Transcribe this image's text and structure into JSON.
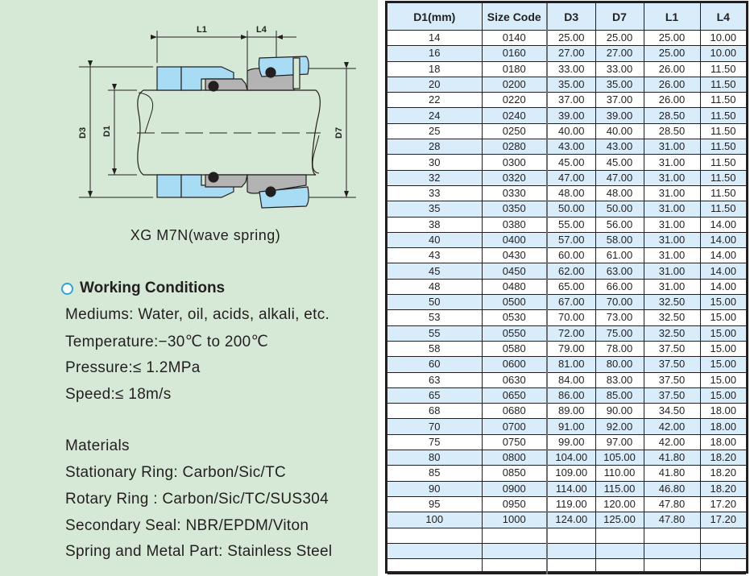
{
  "diagram": {
    "caption": "XG M7N(wave spring)",
    "labels": {
      "l1": "L1",
      "l4": "L4",
      "d3": "D3",
      "d1": "D1",
      "d7": "D7"
    },
    "colors": {
      "background": "#d6e9d6",
      "part_blue": "#a8dcf4",
      "part_gray": "#b3b3b3",
      "oring": "#231f20"
    }
  },
  "working_conditions": {
    "heading": "Working Conditions",
    "lines": [
      "Mediums: Water, oil, acids, alkali, etc.",
      "Temperature:−30℃ to 200℃",
      "Pressure:≤ 1.2MPa",
      "Speed:≤ 18m/s"
    ]
  },
  "materials": {
    "heading": "Materials",
    "lines": [
      "Stationary Ring: Carbon/Sic/TC",
      "Rotary Ring : Carbon/Sic/TC/SUS304",
      "Secondary Seal: NBR/EPDM/Viton",
      "Spring and Metal Part: Stainless Steel"
    ]
  },
  "table": {
    "headers": [
      "D1(mm)",
      "Size Code",
      "D3",
      "D7",
      "L1",
      "L4"
    ],
    "header_bg": "#d8ecf9",
    "rows": [
      [
        "14",
        "0140",
        "25.00",
        "25.00",
        "25.00",
        "10.00"
      ],
      [
        "16",
        "0160",
        "27.00",
        "27.00",
        "25.00",
        "10.00"
      ],
      [
        "18",
        "0180",
        "33.00",
        "33.00",
        "26.00",
        "11.50"
      ],
      [
        "20",
        "0200",
        "35.00",
        "35.00",
        "26.00",
        "11.50"
      ],
      [
        "22",
        "0220",
        "37.00",
        "37.00",
        "26.00",
        "11.50"
      ],
      [
        "24",
        "0240",
        "39.00",
        "39.00",
        "28.50",
        "11.50"
      ],
      [
        "25",
        "0250",
        "40.00",
        "40.00",
        "28.50",
        "11.50"
      ],
      [
        "28",
        "0280",
        "43.00",
        "43.00",
        "31.00",
        "11.50"
      ],
      [
        "30",
        "0300",
        "45.00",
        "45.00",
        "31.00",
        "11.50"
      ],
      [
        "32",
        "0320",
        "47.00",
        "47.00",
        "31.00",
        "11.50"
      ],
      [
        "33",
        "0330",
        "48.00",
        "48.00",
        "31.00",
        "11.50"
      ],
      [
        "35",
        "0350",
        "50.00",
        "50.00",
        "31.00",
        "11.50"
      ],
      [
        "38",
        "0380",
        "55.00",
        "56.00",
        "31.00",
        "14.00"
      ],
      [
        "40",
        "0400",
        "57.00",
        "58.00",
        "31.00",
        "14.00"
      ],
      [
        "43",
        "0430",
        "60.00",
        "61.00",
        "31.00",
        "14.00"
      ],
      [
        "45",
        "0450",
        "62.00",
        "63.00",
        "31.00",
        "14.00"
      ],
      [
        "48",
        "0480",
        "65.00",
        "66.00",
        "31.00",
        "14.00"
      ],
      [
        "50",
        "0500",
        "67.00",
        "70.00",
        "32.50",
        "15.00"
      ],
      [
        "53",
        "0530",
        "70.00",
        "73.00",
        "32.50",
        "15.00"
      ],
      [
        "55",
        "0550",
        "72.00",
        "75.00",
        "32.50",
        "15.00"
      ],
      [
        "58",
        "0580",
        "79.00",
        "78.00",
        "37.50",
        "15.00"
      ],
      [
        "60",
        "0600",
        "81.00",
        "80.00",
        "37.50",
        "15.00"
      ],
      [
        "63",
        "0630",
        "84.00",
        "83.00",
        "37.50",
        "15.00"
      ],
      [
        "65",
        "0650",
        "86.00",
        "85.00",
        "37.50",
        "15.00"
      ],
      [
        "68",
        "0680",
        "89.00",
        "90.00",
        "34.50",
        "18.00"
      ],
      [
        "70",
        "0700",
        "91.00",
        "92.00",
        "42.00",
        "18.00"
      ],
      [
        "75",
        "0750",
        "99.00",
        "97.00",
        "42.00",
        "18.00"
      ],
      [
        "80",
        "0800",
        "104.00",
        "105.00",
        "41.80",
        "18.20"
      ],
      [
        "85",
        "0850",
        "109.00",
        "110.00",
        "41.80",
        "18.20"
      ],
      [
        "90",
        "0900",
        "114.00",
        "115.00",
        "46.80",
        "18.20"
      ],
      [
        "95",
        "0950",
        "119.00",
        "120.00",
        "47.80",
        "17.20"
      ],
      [
        "100",
        "1000",
        "124.00",
        "125.00",
        "47.80",
        "17.20"
      ],
      [
        "",
        "",
        "",
        "",
        "",
        ""
      ],
      [
        "",
        "",
        "",
        "",
        "",
        ""
      ],
      [
        "",
        "",
        "",
        "",
        "",
        ""
      ]
    ]
  }
}
